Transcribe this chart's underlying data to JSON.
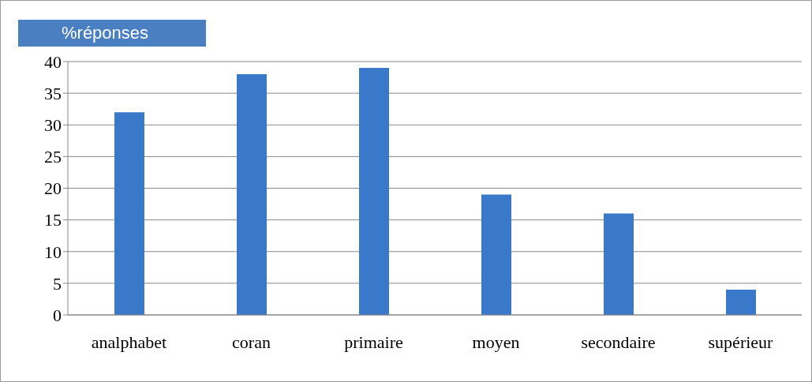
{
  "chart_data": {
    "type": "bar",
    "ylabel": "%réponses",
    "categories": [
      "analphabet",
      "coran",
      "primaire",
      "moyen",
      "secondaire",
      "supérieur"
    ],
    "values": [
      32,
      38,
      39,
      19,
      16,
      4
    ],
    "color": "#3a78c9",
    "ylim": [
      0,
      40
    ],
    "yticks": [
      0,
      5,
      10,
      15,
      20,
      25,
      30,
      35,
      40
    ],
    "grid": "y"
  }
}
